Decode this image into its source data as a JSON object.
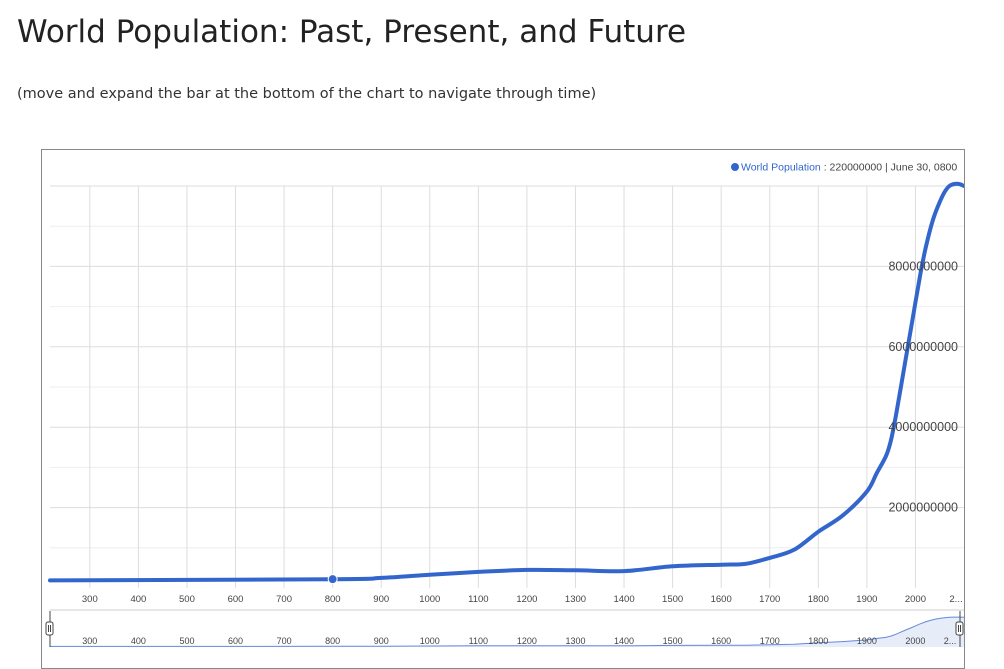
{
  "page": {
    "title": "World Population: Past, Present, and Future",
    "subtitle": "(move and expand the bar at the bottom of the chart to navigate through time)"
  },
  "colors": {
    "line": "#3366cc",
    "grid": "#dddddd",
    "navigator_line": "#6688dd"
  },
  "legend": {
    "series_name": "World Population",
    "separator": " : ",
    "value": "220000000",
    "date_prefix": " | ",
    "date": "June 30, 0800"
  },
  "chart_data": {
    "type": "line",
    "title": "World Population",
    "xlabel": "",
    "ylabel": "",
    "xlim": [
      218,
      2100
    ],
    "ylim": [
      0,
      10000000000
    ],
    "x_ticks": [
      "300",
      "400",
      "500",
      "600",
      "700",
      "800",
      "900",
      "1000",
      "1100",
      "1200",
      "1300",
      "1400",
      "1500",
      "1600",
      "1700",
      "1800",
      "1900",
      "2000",
      "2..."
    ],
    "y_ticks": [
      "2000000000",
      "4000000000",
      "6000000000",
      "8000000000"
    ],
    "navigator_ticks": [
      "300",
      "400",
      "500",
      "600",
      "700",
      "800",
      "900",
      "1000",
      "1100",
      "1200",
      "1300",
      "1400",
      "1500",
      "1600",
      "1700",
      "1800",
      "1900",
      "2000",
      "2..."
    ],
    "highlighted_point": {
      "x": 800,
      "y": 220000000
    },
    "series": [
      {
        "name": "World Population",
        "x": [
          218,
          800,
          900,
          1000,
          1100,
          1200,
          1300,
          1400,
          1500,
          1600,
          1650,
          1700,
          1750,
          1800,
          1850,
          1900,
          1920,
          1940,
          1950,
          1960,
          1970,
          1980,
          1990,
          2000,
          2010,
          2020,
          2030,
          2040,
          2050,
          2060,
          2070,
          2080,
          2090,
          2100
        ],
        "values": [
          190000000,
          220000000,
          250000000,
          330000000,
          400000000,
          450000000,
          440000000,
          420000000,
          540000000,
          580000000,
          600000000,
          750000000,
          950000000,
          1400000000,
          1800000000,
          2400000000,
          2850000000,
          3300000000,
          3700000000,
          4300000000,
          5000000000,
          5700000000,
          6400000000,
          7100000000,
          7800000000,
          8400000000,
          8900000000,
          9300000000,
          9600000000,
          9850000000,
          10000000000,
          10050000000,
          10050000000,
          10000000000
        ]
      }
    ]
  }
}
